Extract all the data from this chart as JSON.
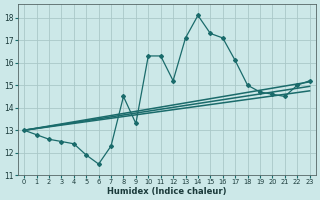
{
  "title": "",
  "xlabel": "Humidex (Indice chaleur)",
  "bg_color": "#cce8e8",
  "line_color": "#1a6b6b",
  "grid_color": "#aac8c8",
  "xlim": [
    -0.5,
    23.5
  ],
  "ylim": [
    11,
    18.6
  ],
  "yticks": [
    11,
    12,
    13,
    14,
    15,
    16,
    17,
    18
  ],
  "xtick_vals": [
    0,
    1,
    2,
    3,
    4,
    5,
    6,
    7,
    8,
    9,
    10,
    11,
    12,
    13,
    14,
    15,
    16,
    17,
    18,
    19,
    20,
    21,
    22,
    23
  ],
  "xtick_labels": [
    "0",
    "1",
    "2",
    "3",
    "4",
    "5",
    "6",
    "7",
    "8",
    "9",
    "1011",
    "",
    "1213",
    "",
    "1415",
    "",
    "1617",
    "",
    "1920",
    "",
    "2122",
    "",
    "23",
    ""
  ],
  "main_x": [
    0,
    1,
    2,
    3,
    4,
    5,
    6,
    7,
    8,
    9,
    10,
    11,
    12,
    13,
    14,
    15,
    16,
    17,
    18,
    19,
    20,
    21,
    22,
    23
  ],
  "main_y": [
    13.0,
    12.8,
    12.6,
    12.5,
    12.4,
    11.9,
    11.5,
    12.3,
    14.5,
    13.3,
    16.3,
    16.3,
    15.2,
    17.1,
    18.1,
    17.3,
    17.1,
    16.1,
    15.0,
    14.7,
    14.6,
    14.5,
    15.0,
    15.2
  ],
  "trend1_x": [
    0,
    23
  ],
  "trend1_y": [
    13.0,
    15.15
  ],
  "trend2_x": [
    0,
    23
  ],
  "trend2_y": [
    13.0,
    14.95
  ],
  "trend3_x": [
    0,
    23
  ],
  "trend3_y": [
    13.0,
    14.75
  ]
}
